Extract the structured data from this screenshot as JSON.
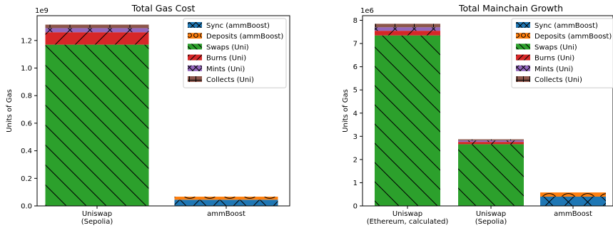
{
  "colors": {
    "sync": "#1f77b4",
    "deposits": "#ff7f0e",
    "swaps": "#2ca02c",
    "burns": "#d62728",
    "mints": "#9467bd",
    "collects": "#8c564b"
  },
  "chart_data": [
    {
      "type": "bar",
      "stacked": true,
      "title": "Total Gas Cost",
      "ylabel": "Units of Gas",
      "y_exponent_label": "1e9",
      "ylim": [
        0,
        1.38
      ],
      "yticks": [
        0,
        0.2,
        0.4,
        0.6,
        0.8,
        1.0,
        1.2
      ],
      "ytick_labels": [
        "0.0",
        "0.2",
        "0.4",
        "0.6",
        "0.8",
        "1.0",
        "1.2"
      ],
      "categories": [
        [
          "Uniswap",
          "(Sepolia)"
        ],
        [
          "ammBoost"
        ]
      ],
      "legend_position": "top-right",
      "series": [
        {
          "name": "Sync (ammBoost)",
          "key": "sync",
          "hatch": "x",
          "values": [
            0,
            0.045
          ]
        },
        {
          "name": "Deposits (ammBoost)",
          "key": "deposits",
          "hatch": "o",
          "values": [
            0,
            0.022
          ]
        },
        {
          "name": "Swaps (Uni)",
          "key": "swaps",
          "hatch": "\\",
          "values": [
            1.17,
            0
          ]
        },
        {
          "name": "Burns (Uni)",
          "key": "burns",
          "hatch": "/",
          "values": [
            0.09,
            0
          ]
        },
        {
          "name": "Mints (Uni)",
          "key": "mints",
          "hatch": "x",
          "values": [
            0.03,
            0
          ]
        },
        {
          "name": "Collects (Uni)",
          "key": "collects",
          "hatch": "+",
          "values": [
            0.025,
            0
          ]
        }
      ]
    },
    {
      "type": "bar",
      "stacked": true,
      "title": "Total Mainchain Growth",
      "ylabel": "Units of Gas",
      "y_exponent_label": "1e6",
      "ylim": [
        0,
        8.2
      ],
      "yticks": [
        0,
        1,
        2,
        3,
        4,
        5,
        6,
        7,
        8
      ],
      "ytick_labels": [
        "0",
        "1",
        "2",
        "3",
        "4",
        "5",
        "6",
        "7",
        "8"
      ],
      "categories": [
        [
          "Uniswap",
          "(Ethereum, calculated)"
        ],
        [
          "Uniswap",
          "(Sepolia)"
        ],
        [
          "ammBoost"
        ]
      ],
      "legend_position": "top-right",
      "series": [
        {
          "name": "Sync (ammBoost)",
          "key": "sync",
          "hatch": "x",
          "values": [
            0,
            0,
            0.4
          ]
        },
        {
          "name": "Deposits (ammBoost)",
          "key": "deposits",
          "hatch": "o",
          "values": [
            0,
            0,
            0.18
          ]
        },
        {
          "name": "Swaps (Uni)",
          "key": "swaps",
          "hatch": "\\",
          "values": [
            7.35,
            2.66,
            0
          ]
        },
        {
          "name": "Burns (Uni)",
          "key": "burns",
          "hatch": "/",
          "values": [
            0.2,
            0.1,
            0
          ]
        },
        {
          "name": "Mints (Uni)",
          "key": "mints",
          "hatch": "x",
          "values": [
            0.15,
            0.06,
            0
          ]
        },
        {
          "name": "Collects (Uni)",
          "key": "collects",
          "hatch": "+",
          "values": [
            0.15,
            0.05,
            0
          ]
        }
      ]
    }
  ]
}
